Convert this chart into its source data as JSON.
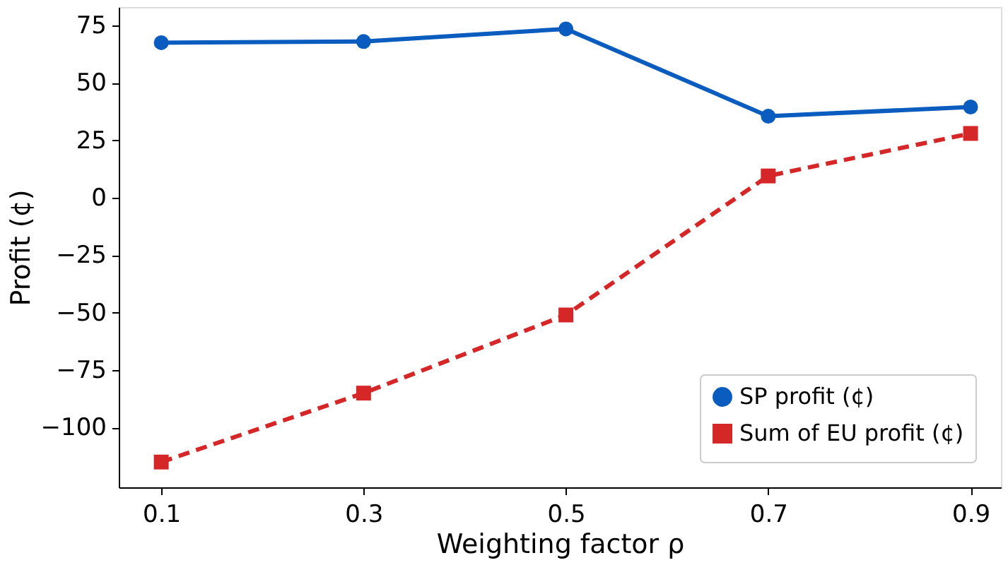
{
  "chart_data": {
    "type": "line",
    "xlabel": "Weighting factor ρ",
    "ylabel": "Profit (¢)",
    "x": [
      0.1,
      0.3,
      0.5,
      0.7,
      0.9
    ],
    "xlim": [
      0.058,
      0.93
    ],
    "xticks": [
      0.1,
      0.3,
      0.5,
      0.7,
      0.9
    ],
    "ylim": [
      -126,
      83
    ],
    "yticks": [
      -100,
      -75,
      -50,
      -25,
      0,
      25,
      50,
      75
    ],
    "grid": false,
    "legend": "bottom right",
    "series": [
      {
        "name": "SP profit (¢)",
        "color": "#0b5cbf",
        "values": [
          67.5,
          68,
          73.5,
          35.5,
          39.5
        ],
        "marker": "circle",
        "line_style": "solid"
      },
      {
        "name": "Sum of EU profit (¢)",
        "color": "#d62728",
        "values": [
          -115,
          -85,
          -51,
          9.5,
          28
        ],
        "marker": "square",
        "line_style": "dashed"
      }
    ]
  }
}
